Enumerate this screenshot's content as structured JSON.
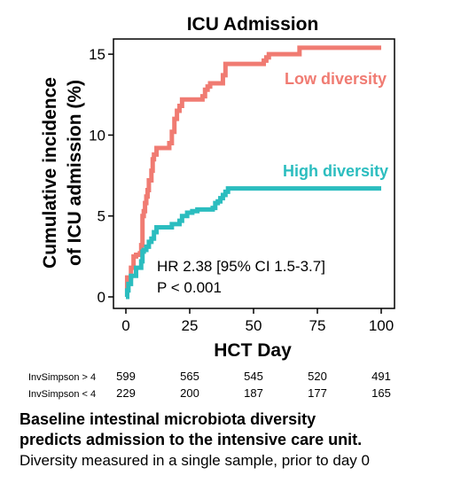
{
  "chart_data": {
    "type": "line",
    "title": "ICU Admission",
    "xlabel": "HCT Day",
    "ylabel_line1": "Cumulative incidence",
    "ylabel_line2": "of ICU admission (%)",
    "xlim": [
      0,
      100
    ],
    "ylim": [
      0,
      15.5
    ],
    "xticks": [
      0,
      25,
      50,
      75,
      100
    ],
    "yticks": [
      0,
      5,
      10,
      15
    ],
    "grid": false,
    "series": [
      {
        "name": "Low diversity",
        "color": "#F07B72",
        "step": true,
        "points": [
          [
            0,
            0
          ],
          [
            0.5,
            1.2
          ],
          [
            2,
            1.8
          ],
          [
            3,
            2.5
          ],
          [
            4,
            2.6
          ],
          [
            5.5,
            2.7
          ],
          [
            6,
            3.2
          ],
          [
            6.5,
            5.0
          ],
          [
            7,
            5.3
          ],
          [
            7.5,
            5.8
          ],
          [
            8,
            6.2
          ],
          [
            8.5,
            6.6
          ],
          [
            9,
            7.2
          ],
          [
            10,
            7.8
          ],
          [
            10.5,
            8.5
          ],
          [
            11,
            8.8
          ],
          [
            12,
            9.2
          ],
          [
            17,
            9.5
          ],
          [
            18,
            10.2
          ],
          [
            19,
            11.0
          ],
          [
            20,
            11.5
          ],
          [
            21,
            11.8
          ],
          [
            22,
            12.2
          ],
          [
            30,
            12.4
          ],
          [
            31,
            12.8
          ],
          [
            32,
            13.0
          ],
          [
            33,
            13.2
          ],
          [
            38,
            13.7
          ],
          [
            39,
            14.4
          ],
          [
            54,
            14.6
          ],
          [
            55,
            14.8
          ],
          [
            56,
            15.0
          ],
          [
            68,
            15.4
          ],
          [
            100,
            15.4
          ]
        ]
      },
      {
        "name": "High diversity",
        "color": "#2BBDBF",
        "step": true,
        "points": [
          [
            0,
            0
          ],
          [
            0.5,
            0.4
          ],
          [
            1,
            0.8
          ],
          [
            2,
            1.3
          ],
          [
            4,
            1.8
          ],
          [
            6,
            2.2
          ],
          [
            6.5,
            2.8
          ],
          [
            7,
            2.9
          ],
          [
            8,
            3.1
          ],
          [
            9,
            3.4
          ],
          [
            10,
            3.6
          ],
          [
            11,
            4.0
          ],
          [
            12,
            4.3
          ],
          [
            18,
            4.5
          ],
          [
            21,
            4.7
          ],
          [
            22,
            5.0
          ],
          [
            24,
            5.2
          ],
          [
            26,
            5.3
          ],
          [
            28,
            5.4
          ],
          [
            34,
            5.5
          ],
          [
            35,
            5.8
          ],
          [
            36,
            5.9
          ],
          [
            37,
            6.1
          ],
          [
            38,
            6.3
          ],
          [
            39,
            6.5
          ],
          [
            40,
            6.7
          ],
          [
            100,
            6.7
          ]
        ]
      }
    ],
    "series_labels": [
      "Low diversity",
      "High diversity"
    ],
    "annotation_line1": "HR 2.38 [95% CI 1.5-3.7]",
    "annotation_line2": "P < 0.001",
    "risk_table": {
      "times": [
        0,
        25,
        50,
        75,
        100
      ],
      "rows": [
        {
          "label": "InvSimpson > 4",
          "values": [
            "599",
            "565",
            "545",
            "520",
            "491"
          ]
        },
        {
          "label": "InvSimpson < 4",
          "values": [
            "229",
            "200",
            "187",
            "177",
            "165"
          ]
        }
      ]
    }
  },
  "caption": {
    "line1": "Baseline intestinal microbiota diversity",
    "line2": "predicts admission to the intensive care unit.",
    "line3": "Diversity measured in a single sample, prior to day 0"
  }
}
